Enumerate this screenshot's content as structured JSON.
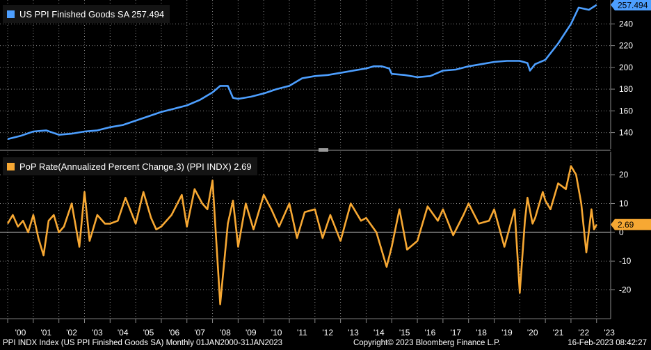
{
  "colors": {
    "ppi_line": "#4d9fff",
    "pop_line": "#f7a833",
    "background": "#000000",
    "grid": "#8a8a8a"
  },
  "legends": {
    "ppi": "US PPI Finished Goods SA  257.494",
    "pop": "PoP Rate(Annualized Percent Change,3) (PPI INDX)  2.69"
  },
  "last_value_labels": {
    "ppi": "257.494",
    "pop": "2.69"
  },
  "footer": {
    "left": "PPI INDX Index (US PPI Finished Goods SA)  Monthly 01JAN2000-31JAN2023",
    "center": "Copyright© 2023 Bloomberg Finance L.P.",
    "right": "16-Feb-2023 08:42:27"
  },
  "chart_data": [
    {
      "type": "line",
      "title": "US PPI Finished Goods SA",
      "series": [
        {
          "name": "US PPI Finished Goods SA",
          "color": "#4d9fff",
          "x": [
            2000.0,
            2000.5,
            2001.0,
            2001.5,
            2002.0,
            2002.5,
            2003.0,
            2003.5,
            2004.0,
            2004.5,
            2005.0,
            2005.5,
            2006.0,
            2006.5,
            2007.0,
            2007.5,
            2008.0,
            2008.3,
            2008.6,
            2008.8,
            2009.0,
            2009.5,
            2010.0,
            2010.5,
            2011.0,
            2011.5,
            2012.0,
            2012.5,
            2013.0,
            2013.5,
            2014.0,
            2014.3,
            2014.6,
            2014.9,
            2015.0,
            2015.5,
            2016.0,
            2016.5,
            2017.0,
            2017.5,
            2018.0,
            2018.5,
            2019.0,
            2019.5,
            2020.0,
            2020.3,
            2020.4,
            2020.6,
            2021.0,
            2021.5,
            2022.0,
            2022.3,
            2022.5,
            2022.7,
            2023.0
          ],
          "y": [
            134,
            137,
            141,
            142,
            138,
            139,
            141,
            142,
            145,
            147,
            151,
            155,
            159,
            162,
            165,
            170,
            177,
            183,
            183,
            172,
            171,
            173,
            176,
            180,
            183,
            190,
            192,
            193,
            195,
            197,
            199,
            201,
            201,
            199,
            194,
            193,
            191,
            192,
            197,
            198,
            201,
            203,
            205,
            206,
            206,
            204,
            197,
            203,
            207,
            222,
            240,
            255,
            254,
            253,
            257.494
          ]
        }
      ],
      "xlim": [
        2000.0,
        2023.0
      ],
      "ylim": [
        125,
        262
      ],
      "yticks": [
        140,
        160,
        180,
        200,
        220,
        240
      ],
      "grid": true,
      "y_axis": "right",
      "legend": "top-left"
    },
    {
      "type": "line",
      "title": "PoP Rate(Annualized Percent Change,3) (PPI INDX)",
      "series": [
        {
          "name": "PoP Rate(Annualized Percent Change,3) (PPI INDX)",
          "color": "#f7a833",
          "x": [
            2000.0,
            2000.2,
            2000.4,
            2000.6,
            2000.8,
            2001.0,
            2001.2,
            2001.4,
            2001.6,
            2001.8,
            2002.0,
            2002.2,
            2002.5,
            2002.8,
            2003.0,
            2003.2,
            2003.5,
            2003.8,
            2004.0,
            2004.3,
            2004.6,
            2005.0,
            2005.3,
            2005.6,
            2005.8,
            2006.0,
            2006.4,
            2006.8,
            2007.0,
            2007.3,
            2007.6,
            2007.8,
            2008.0,
            2008.3,
            2008.6,
            2008.8,
            2009.0,
            2009.3,
            2009.6,
            2010.0,
            2010.3,
            2010.6,
            2011.0,
            2011.3,
            2011.6,
            2012.0,
            2012.3,
            2012.6,
            2013.0,
            2013.4,
            2013.8,
            2014.0,
            2014.4,
            2014.8,
            2015.0,
            2015.3,
            2015.6,
            2016.0,
            2016.4,
            2016.8,
            2017.0,
            2017.4,
            2017.8,
            2018.0,
            2018.4,
            2018.8,
            2019.0,
            2019.4,
            2019.8,
            2020.0,
            2020.2,
            2020.3,
            2020.5,
            2020.6,
            2020.9,
            2021.0,
            2021.2,
            2021.5,
            2021.8,
            2022.0,
            2022.2,
            2022.3,
            2022.4,
            2022.6,
            2022.8,
            2022.9,
            2023.0
          ],
          "y": [
            3,
            6,
            2,
            4,
            0,
            6,
            -2,
            -8,
            4,
            6,
            0,
            2,
            10,
            -5,
            14,
            -3,
            6,
            3,
            3,
            4,
            12,
            3,
            14,
            5,
            1,
            2,
            6,
            13,
            2,
            15,
            10,
            8,
            18,
            -25,
            3,
            11,
            -5,
            10,
            1,
            13,
            8,
            2,
            10,
            -2,
            7,
            8,
            -2,
            6,
            -3,
            10,
            4,
            5,
            0,
            -12,
            -5,
            8,
            -6,
            -3,
            9,
            4,
            8,
            -1,
            6,
            10,
            3,
            4,
            8,
            -5,
            8,
            -21,
            4,
            12,
            3,
            5,
            14,
            11,
            8,
            17,
            15,
            23,
            20,
            15,
            10,
            -7,
            8,
            1,
            2.69
          ]
        }
      ],
      "xlim": [
        2000.0,
        2023.0
      ],
      "ylim": [
        -30,
        28
      ],
      "yticks": [
        -20,
        -10,
        0,
        10,
        20
      ],
      "grid": true,
      "y_axis": "right",
      "legend": "top-left"
    }
  ],
  "x_tick_labels": [
    "'00",
    "'01",
    "'02",
    "'03",
    "'04",
    "'05",
    "'06",
    "'07",
    "'08",
    "'09",
    "'10",
    "'11",
    "'12",
    "'13",
    "'14",
    "'15",
    "'16",
    "'17",
    "'18",
    "'19",
    "'20",
    "'21",
    "'22",
    "'23"
  ]
}
